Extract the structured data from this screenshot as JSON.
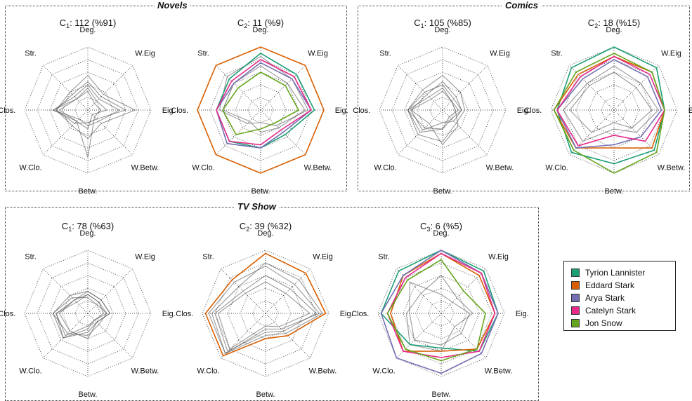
{
  "panels": [
    {
      "title": "Novels"
    },
    {
      "title": "Comics"
    },
    {
      "title": "TV Show"
    }
  ],
  "legend": [
    {
      "name": "Tyrion Lannister",
      "color": "#1b9e77"
    },
    {
      "name": "Eddard Stark",
      "color": "#d95f02"
    },
    {
      "name": "Arya Stark",
      "color": "#7570b3"
    },
    {
      "name": "Catelyn Stark",
      "color": "#e7298a"
    },
    {
      "name": "Jon Snow",
      "color": "#66a61e"
    }
  ],
  "chart_data": [
    {
      "type": "radar",
      "group": "Novels",
      "title": "C1: 112 (%91)",
      "count": 112,
      "percent": 91,
      "axes": [
        "Deg.",
        "W.Eig",
        "Eig.",
        "W.Betw.",
        "Betw.",
        "W.Clo.",
        "Clos.",
        "Str."
      ],
      "rlim": [
        0,
        1
      ],
      "grid": true,
      "series": [
        {
          "values": [
            0.55,
            0.35,
            0.75,
            0.3,
            0.45,
            0.35,
            0.5,
            0.4
          ]
        },
        {
          "values": [
            0.35,
            0.2,
            0.3,
            0.1,
            0.3,
            0.25,
            0.55,
            0.25
          ]
        },
        {
          "values": [
            0.45,
            0.3,
            0.6,
            0.2,
            0.2,
            0.3,
            0.5,
            0.35
          ]
        },
        {
          "values": [
            0.3,
            0.15,
            0.2,
            0.15,
            0.75,
            0.25,
            0.45,
            0.25
          ]
        },
        {
          "values": [
            0.4,
            0.25,
            0.5,
            0.25,
            0.25,
            0.2,
            0.55,
            0.3
          ]
        }
      ]
    },
    {
      "type": "radar",
      "group": "Novels",
      "title": "C2: 11 (%9)",
      "count": 11,
      "percent": 9,
      "axes": [
        "Deg.",
        "W.Eig",
        "Eig.",
        "W.Betw.",
        "Betw.",
        "W.Clo.",
        "Clos.",
        "Str."
      ],
      "rlim": [
        0,
        1
      ],
      "grid": true,
      "series": [
        {
          "name": "Tyrion Lannister",
          "values": [
            0.9,
            0.8,
            0.85,
            0.55,
            0.6,
            0.7,
            0.7,
            0.7
          ]
        },
        {
          "name": "Eddard Stark",
          "values": [
            1.0,
            1.0,
            1.0,
            1.0,
            1.0,
            1.0,
            1.0,
            1.0
          ]
        },
        {
          "name": "Arya Stark",
          "values": [
            0.75,
            0.7,
            0.8,
            0.5,
            0.6,
            0.75,
            0.7,
            0.6
          ]
        },
        {
          "name": "Catelyn Stark",
          "values": [
            0.8,
            0.75,
            0.8,
            0.45,
            0.55,
            0.7,
            0.7,
            0.65
          ]
        },
        {
          "name": "Jon Snow",
          "values": [
            0.6,
            0.55,
            0.6,
            0.3,
            0.3,
            0.55,
            0.6,
            0.5
          ]
        },
        {
          "values": [
            0.85,
            0.7,
            0.75,
            0.35,
            0.2,
            0.3,
            0.65,
            0.75
          ]
        },
        {
          "values": [
            0.7,
            0.6,
            0.7,
            0.4,
            0.35,
            0.25,
            0.6,
            0.6
          ]
        }
      ]
    },
    {
      "type": "radar",
      "group": "Comics",
      "title": "C1: 105 (%85)",
      "count": 105,
      "percent": 85,
      "axes": [
        "Deg.",
        "W.Eig",
        "Eig.",
        "W.Betw.",
        "Betw.",
        "W.Clo.",
        "Clos.",
        "Str."
      ],
      "rlim": [
        0,
        1
      ],
      "grid": true,
      "series": [
        {
          "values": [
            0.55,
            0.4,
            0.35,
            0.3,
            0.5,
            0.55,
            0.55,
            0.45
          ]
        },
        {
          "values": [
            0.35,
            0.2,
            0.25,
            0.15,
            0.3,
            0.4,
            0.55,
            0.3
          ]
        },
        {
          "values": [
            0.45,
            0.3,
            0.3,
            0.25,
            0.2,
            0.45,
            0.5,
            0.35
          ]
        },
        {
          "values": [
            0.3,
            0.2,
            0.2,
            0.35,
            0.55,
            0.3,
            0.5,
            0.25
          ]
        },
        {
          "values": [
            0.4,
            0.25,
            0.3,
            0.2,
            0.3,
            0.5,
            0.55,
            0.4
          ]
        }
      ]
    },
    {
      "type": "radar",
      "group": "Comics",
      "title": "C2: 18 (%15)",
      "count": 18,
      "percent": 15,
      "axes": [
        "Deg.",
        "W.Eig",
        "Eig.",
        "W.Betw.",
        "Betw.",
        "W.Clo.",
        "Clos.",
        "Str."
      ],
      "rlim": [
        0,
        1
      ],
      "grid": true,
      "series": [
        {
          "name": "Tyrion Lannister",
          "values": [
            1.0,
            0.95,
            0.8,
            0.9,
            0.85,
            0.95,
            0.9,
            0.95
          ]
        },
        {
          "name": "Eddard Stark",
          "values": [
            0.85,
            0.85,
            0.8,
            0.85,
            0.6,
            0.85,
            0.95,
            0.8
          ]
        },
        {
          "name": "Arya Stark",
          "values": [
            0.8,
            0.75,
            0.75,
            0.6,
            0.55,
            0.85,
            0.9,
            0.7
          ]
        },
        {
          "name": "Catelyn Stark",
          "values": [
            0.85,
            0.8,
            0.8,
            0.7,
            0.4,
            0.8,
            0.9,
            0.75
          ]
        },
        {
          "name": "Jon Snow",
          "values": [
            0.9,
            0.85,
            0.8,
            0.95,
            1.0,
            0.9,
            0.95,
            0.85
          ]
        },
        {
          "values": [
            0.7,
            0.6,
            0.7,
            0.5,
            0.3,
            0.7,
            0.8,
            0.6
          ]
        },
        {
          "values": [
            0.6,
            0.5,
            0.6,
            0.4,
            0.2,
            0.5,
            0.7,
            0.55
          ]
        }
      ]
    },
    {
      "type": "radar",
      "group": "TV Show",
      "title": "C1: 78 (%63)",
      "count": 78,
      "percent": 63,
      "axes": [
        "Deg.",
        "W.Eig",
        "Eig.",
        "W.Betw.",
        "Betw.",
        "W.Clo.",
        "Clos.",
        "Str."
      ],
      "rlim": [
        0,
        1
      ],
      "grid": true,
      "series": [
        {
          "values": [
            0.35,
            0.3,
            0.35,
            0.2,
            0.3,
            0.55,
            0.55,
            0.4
          ]
        },
        {
          "values": [
            0.3,
            0.25,
            0.3,
            0.15,
            0.2,
            0.5,
            0.5,
            0.3
          ]
        },
        {
          "values": [
            0.25,
            0.2,
            0.3,
            0.25,
            0.35,
            0.45,
            0.55,
            0.35
          ]
        },
        {
          "values": [
            0.3,
            0.25,
            0.25,
            0.15,
            0.25,
            0.55,
            0.5,
            0.25
          ]
        },
        {
          "values": [
            0.35,
            0.3,
            0.35,
            0.2,
            0.4,
            0.4,
            0.45,
            0.3
          ]
        }
      ]
    },
    {
      "type": "radar",
      "group": "TV Show",
      "title": "C2: 39 (%32)",
      "count": 39,
      "percent": 32,
      "axes": [
        "Deg.",
        "W.Eig",
        "Eig.",
        "W.Betw.",
        "Betw.",
        "W.Clo.",
        "Clos.",
        "Str."
      ],
      "rlim": [
        0,
        1
      ],
      "grid": true,
      "series": [
        {
          "name": "Eddard Stark",
          "values": [
            0.95,
            0.9,
            0.95,
            0.5,
            0.4,
            0.95,
            0.95,
            0.75
          ]
        },
        {
          "values": [
            0.8,
            0.75,
            0.9,
            0.45,
            0.35,
            0.9,
            0.85,
            0.6
          ]
        },
        {
          "values": [
            0.6,
            0.55,
            0.8,
            0.4,
            0.3,
            0.85,
            0.8,
            0.5
          ]
        },
        {
          "values": [
            0.75,
            0.65,
            0.85,
            0.35,
            0.25,
            0.9,
            0.9,
            0.7
          ]
        },
        {
          "values": [
            0.5,
            0.45,
            0.7,
            0.3,
            0.2,
            0.8,
            0.75,
            0.45
          ]
        }
      ]
    },
    {
      "type": "radar",
      "group": "TV Show",
      "title": "C3: 6 (%5)",
      "count": 6,
      "percent": 5,
      "axes": [
        "Deg.",
        "W.Eig",
        "Eig.",
        "W.Betw.",
        "Betw.",
        "W.Clo.",
        "Clos.",
        "Str."
      ],
      "rlim": [
        0,
        1
      ],
      "grid": true,
      "series": [
        {
          "name": "Tyrion Lannister",
          "values": [
            1.0,
            0.95,
            0.9,
            0.85,
            0.55,
            0.7,
            0.95,
            0.95
          ]
        },
        {
          "name": "Eddard Stark",
          "values": [
            0.95,
            0.85,
            0.85,
            0.8,
            0.6,
            0.85,
            0.8,
            0.85
          ]
        },
        {
          "name": "Arya Stark",
          "values": [
            1.0,
            0.9,
            0.9,
            0.9,
            0.95,
            1.0,
            0.95,
            0.85
          ]
        },
        {
          "name": "Catelyn Stark",
          "values": [
            0.95,
            0.9,
            0.85,
            0.85,
            0.7,
            0.85,
            0.85,
            0.8
          ]
        },
        {
          "name": "Jon Snow",
          "values": [
            0.85,
            0.5,
            0.7,
            0.8,
            0.75,
            0.8,
            0.85,
            0.75
          ]
        },
        {
          "values": [
            0.6,
            0.35,
            0.5,
            0.3,
            0.6,
            0.7,
            0.55,
            0.45
          ]
        },
        {
          "values": [
            0.3,
            0.25,
            0.45,
            0.45,
            0.5,
            0.6,
            0.5,
            0.7
          ]
        }
      ]
    }
  ]
}
